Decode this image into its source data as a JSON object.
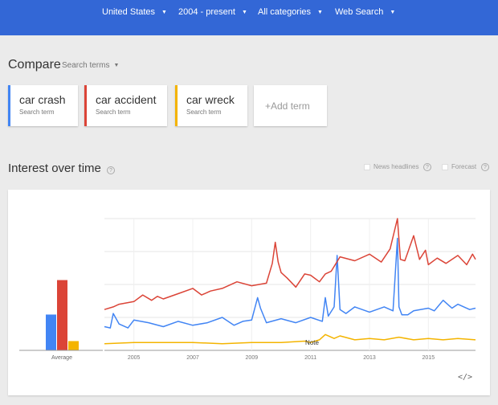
{
  "header": {
    "filters": [
      {
        "label": "United States",
        "icon": "caret-down-icon"
      },
      {
        "label": "2004 - present",
        "icon": "caret-down-icon"
      },
      {
        "label": "All categories",
        "icon": "caret-down-icon"
      },
      {
        "label": "Web Search",
        "icon": "caret-down-icon"
      }
    ],
    "background": "#3367d6"
  },
  "compare": {
    "title": "Compare",
    "dropdown_label": "Search terms",
    "terms": [
      {
        "name": "car crash",
        "type": "Search term",
        "color": "#4285f4"
      },
      {
        "name": "car accident",
        "type": "Search term",
        "color": "#db4437"
      },
      {
        "name": "car wreck",
        "type": "Search term",
        "color": "#f4b400"
      }
    ],
    "add_term": "+Add term"
  },
  "interest": {
    "title": "Interest over time",
    "help": "?",
    "news_headlines": "News headlines",
    "forecast": "Forecast",
    "embed": "</>"
  },
  "chart_data": {
    "type": "line",
    "average_label": "Average",
    "averages": [
      {
        "name": "car crash",
        "value": 27
      },
      {
        "name": "car accident",
        "value": 53
      },
      {
        "name": "car wreck",
        "value": 7
      }
    ],
    "xlim": [
      2004,
      2016.6
    ],
    "ylim": [
      0,
      100
    ],
    "x_ticks": [
      "2005",
      "2007",
      "2009",
      "2011",
      "2013",
      "2015"
    ],
    "annotation": "Note",
    "series": [
      {
        "name": "car crash",
        "color": "#4285f4",
        "x": [
          2004.0,
          2004.2,
          2004.3,
          2004.5,
          2004.8,
          2005.0,
          2005.5,
          2006.0,
          2006.5,
          2007.0,
          2007.5,
          2008.0,
          2008.4,
          2008.7,
          2009.0,
          2009.2,
          2009.3,
          2009.5,
          2010.0,
          2010.5,
          2011.0,
          2011.4,
          2011.5,
          2011.6,
          2011.8,
          2011.9,
          2012.0,
          2012.2,
          2012.5,
          2013.0,
          2013.5,
          2013.8,
          2013.95,
          2014.0,
          2014.1,
          2014.3,
          2014.5,
          2015.0,
          2015.2,
          2015.5,
          2015.8,
          2016.0,
          2016.4,
          2016.6
        ],
        "y": [
          18,
          17,
          28,
          20,
          17,
          23,
          21,
          18,
          22,
          19,
          21,
          25,
          19,
          22,
          23,
          40,
          32,
          21,
          24,
          21,
          25,
          22,
          40,
          26,
          33,
          72,
          31,
          28,
          33,
          29,
          33,
          30,
          85,
          33,
          27,
          27,
          30,
          32,
          30,
          38,
          32,
          35,
          31,
          32
        ]
      },
      {
        "name": "car accident",
        "color": "#db4437",
        "x": [
          2004.0,
          2004.3,
          2004.5,
          2005.0,
          2005.3,
          2005.6,
          2005.8,
          2006.0,
          2006.5,
          2007.0,
          2007.3,
          2007.6,
          2008.0,
          2008.5,
          2009.0,
          2009.5,
          2009.7,
          2009.8,
          2009.9,
          2010.0,
          2010.2,
          2010.5,
          2010.8,
          2011.0,
          2011.3,
          2011.5,
          2011.7,
          2012.0,
          2012.5,
          2013.0,
          2013.4,
          2013.7,
          2013.95,
          2014.05,
          2014.2,
          2014.5,
          2014.7,
          2014.9,
          2015.0,
          2015.3,
          2015.6,
          2016.0,
          2016.3,
          2016.5,
          2016.6
        ],
        "y": [
          31,
          33,
          35,
          37,
          42,
          38,
          41,
          39,
          43,
          47,
          42,
          45,
          47,
          52,
          49,
          51,
          66,
          82,
          67,
          59,
          55,
          48,
          58,
          57,
          52,
          58,
          60,
          71,
          68,
          73,
          67,
          77,
          100,
          69,
          68,
          87,
          69,
          76,
          65,
          70,
          66,
          72,
          65,
          73,
          69
        ]
      },
      {
        "name": "car wreck",
        "color": "#f4b400",
        "x": [
          2004.0,
          2005.0,
          2006.0,
          2007.0,
          2008.0,
          2009.0,
          2010.0,
          2010.8,
          2011.0,
          2011.3,
          2011.5,
          2011.8,
          2012.0,
          2012.5,
          2013.0,
          2013.5,
          2014.0,
          2014.5,
          2015.0,
          2015.5,
          2016.0,
          2016.6
        ],
        "y": [
          5,
          6,
          6,
          6,
          5,
          6,
          6,
          7,
          6,
          8,
          12,
          9,
          11,
          8,
          9,
          8,
          10,
          8,
          9,
          8,
          9,
          8
        ]
      }
    ]
  }
}
